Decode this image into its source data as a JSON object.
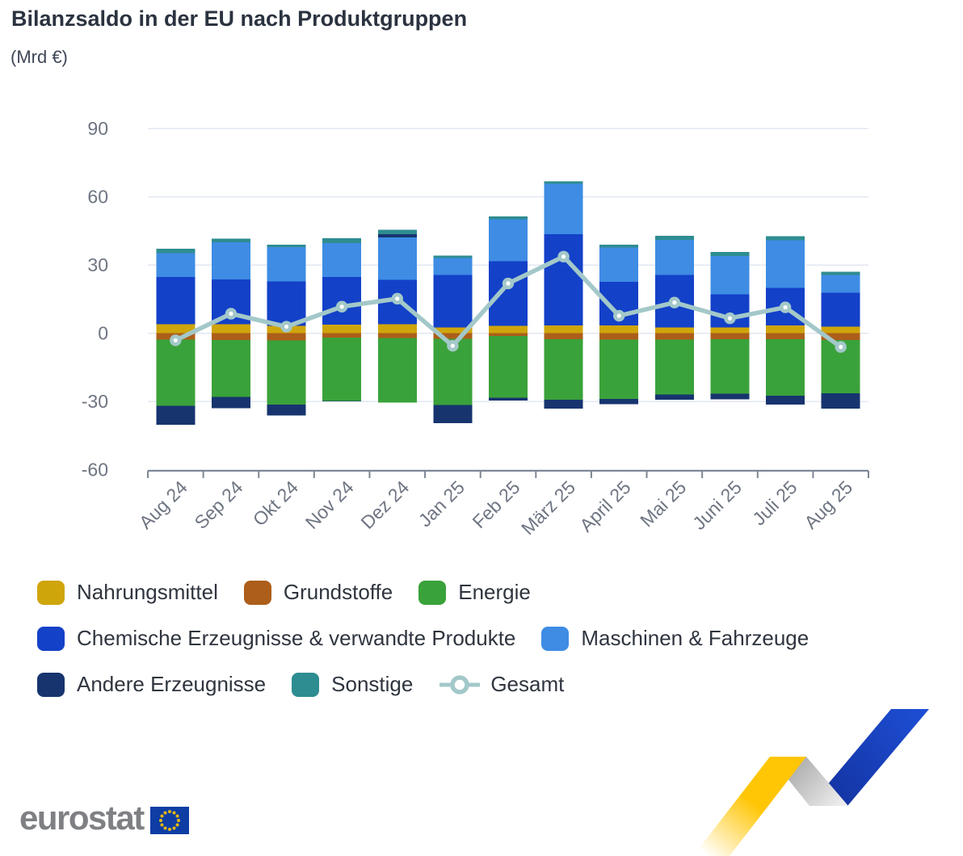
{
  "header": {
    "title": "Bilanzsaldo in der EU nach Produktgruppen",
    "subtitle": "(Mrd €)"
  },
  "chart_data": {
    "type": "bar",
    "stacked": true,
    "title": "Bilanzsaldo in der EU nach Produktgruppen",
    "unit": "Mrd €",
    "categories": [
      "Aug 24",
      "Sep 24",
      "Okt 24",
      "Nov 24",
      "Dez 24",
      "Jan 25",
      "Feb 25",
      "März 25",
      "April 25",
      "Mai 25",
      "Juni 25",
      "Juli 25",
      "Aug 25"
    ],
    "series": [
      {
        "name": "Nahrungsmittel",
        "color": "#CFA50C",
        "values": [
          4.0,
          3.9,
          3.3,
          3.8,
          4.0,
          2.6,
          3.3,
          3.5,
          3.5,
          2.6,
          2.6,
          3.5,
          2.9
        ]
      },
      {
        "name": "Grundstoffe",
        "color": "#AC5E1A",
        "values": [
          -2.8,
          -2.9,
          -3.1,
          -1.8,
          -2.1,
          -2.4,
          -1.2,
          -2.6,
          -2.8,
          -2.7,
          -2.6,
          -2.6,
          -3.0
        ]
      },
      {
        "name": "Energie",
        "color": "#3AA23A",
        "values": [
          -29.1,
          -25.0,
          -28.3,
          -27.9,
          -28.3,
          -29.2,
          -27.1,
          -26.6,
          -26.0,
          -24.2,
          -23.9,
          -24.8,
          -23.4
        ]
      },
      {
        "name": "Chemische Erzeugnisse & verwandte Produkte",
        "color": "#1341C8",
        "values": [
          20.7,
          19.7,
          19.5,
          21.0,
          19.5,
          23.0,
          28.3,
          40.1,
          19.2,
          23.0,
          14.5,
          16.5,
          15.0
        ]
      },
      {
        "name": "Maschinen & Fahrzeuge",
        "color": "#3E8CE4",
        "values": [
          10.6,
          16.5,
          15.1,
          14.9,
          18.6,
          7.4,
          18.6,
          22.2,
          15.0,
          15.4,
          16.8,
          20.9,
          7.7
        ]
      },
      {
        "name": "Andere Erzeugnisse",
        "color": "#17346F",
        "values": [
          -8.3,
          -5.1,
          -4.7,
          -0.3,
          1.5,
          -8.0,
          -1.2,
          -3.9,
          -2.4,
          -2.4,
          -2.6,
          -3.9,
          -6.7
        ]
      },
      {
        "name": "Sonstige",
        "color": "#2E8D90",
        "values": [
          1.8,
          1.5,
          1.1,
          2.0,
          2.0,
          1.1,
          1.2,
          1.0,
          1.2,
          1.8,
          1.8,
          1.8,
          1.5
        ]
      }
    ],
    "line_series": {
      "name": "Gesamt",
      "color": "#A3C8C9",
      "values": [
        -3.1,
        8.6,
        2.9,
        11.7,
        15.2,
        -5.5,
        21.9,
        33.7,
        7.7,
        13.5,
        6.6,
        11.4,
        -6.0
      ]
    },
    "ylim": [
      -60,
      90
    ],
    "yticks": [
      90,
      60,
      30,
      0,
      -30,
      -60
    ],
    "grid": true,
    "legend_position": "bottom",
    "axis_text_color": "#6E7582",
    "grid_color": "#E2E7F3",
    "axis_color": "#7E8694"
  },
  "legend": {
    "rows": [
      [
        {
          "label": "Nahrungsmittel",
          "color": "#CFA50C",
          "marker": "swatch"
        },
        {
          "label": "Grundstoffe",
          "color": "#AC5E1A",
          "marker": "swatch"
        },
        {
          "label": "Energie",
          "color": "#3AA23A",
          "marker": "swatch"
        }
      ],
      [
        {
          "label": "Chemische Erzeugnisse & verwandte Produkte",
          "color": "#1341C8",
          "marker": "swatch"
        },
        {
          "label": "Maschinen & Fahrzeuge",
          "color": "#3E8CE4",
          "marker": "swatch"
        }
      ],
      [
        {
          "label": "Andere Erzeugnisse",
          "color": "#17346F",
          "marker": "swatch"
        },
        {
          "label": "Sonstige",
          "color": "#2E8D90",
          "marker": "swatch"
        },
        {
          "label": "Gesamt",
          "color": "#A3C8C9",
          "marker": "line"
        }
      ]
    ]
  },
  "footer": {
    "brand": "eurostat",
    "flag_blue": "#0E3DA4",
    "star_color": "#E7B70F",
    "ribbon_yellow": "#FFC606",
    "ribbon_blue_light": "#1E4FD6",
    "ribbon_blue_dark": "#12309B"
  }
}
